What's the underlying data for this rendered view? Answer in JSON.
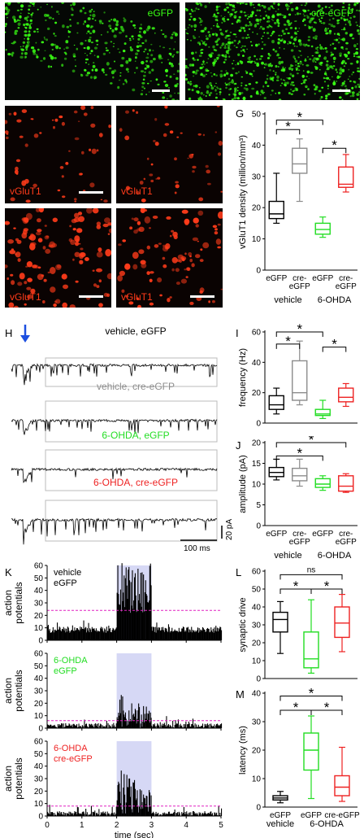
{
  "micrographs": {
    "top_left_label": "eGFP",
    "top_right_label": "cre-eGFP",
    "vglut_labels": [
      "vGluT1",
      "vGluT1",
      "vGluT1",
      "vGluT1"
    ],
    "green_color": "#39ff14",
    "red_color": "#ff3b1a"
  },
  "panel_letters": [
    "G",
    "H",
    "I",
    "J",
    "K",
    "L",
    "M"
  ],
  "colors": {
    "vehicle_egfp": "#000000",
    "vehicle_cre": "#8c8c8c",
    "ohda_egfp": "#22dd22",
    "ohda_cre": "#ee2222"
  },
  "traces": {
    "labels": [
      "vehicle, eGFP",
      "vehicle, cre-eGFP",
      "6-OHDA, eGFP",
      "6-OHDA, cre-eGFP"
    ],
    "scale_y": "20 pA",
    "scale_x": "100 ms"
  },
  "chart_data": [
    {
      "id": "G",
      "type": "box",
      "ylabel": "vGluT1 density (million/mm³)",
      "ylim": [
        0,
        50
      ],
      "yticks": [
        0,
        10,
        20,
        30,
        40,
        50
      ],
      "categories": [
        "eGFP",
        "cre-\neGFP",
        "eGFP",
        "cre-\neGFP"
      ],
      "groups": [
        "vehicle",
        "6-OHDA"
      ],
      "boxes": [
        {
          "min": 15,
          "q1": 16.5,
          "median": 18,
          "q3": 22,
          "max": 31
        },
        {
          "min": 22,
          "q1": 31,
          "median": 34,
          "q3": 39,
          "max": 42
        },
        {
          "min": 10.5,
          "q1": 11.5,
          "median": 13,
          "q3": 15,
          "max": 17
        },
        {
          "min": 25,
          "q1": 26.5,
          "median": 27.5,
          "q3": 33,
          "max": 37
        }
      ],
      "significance": [
        "*",
        "*",
        "*"
      ]
    },
    {
      "id": "I",
      "type": "box",
      "ylabel": "frequency (Hz)",
      "ylim": [
        0,
        60
      ],
      "yticks": [
        0,
        20,
        40,
        60
      ],
      "boxes": [
        {
          "min": 6,
          "q1": 9,
          "median": 12,
          "q3": 18,
          "max": 23
        },
        {
          "min": 12,
          "q1": 15,
          "median": 20,
          "q3": 41,
          "max": 54
        },
        {
          "min": 3,
          "q1": 5,
          "median": 6,
          "q3": 9,
          "max": 15
        },
        {
          "min": 11,
          "q1": 14,
          "median": 17,
          "q3": 23,
          "max": 26
        }
      ],
      "significance": [
        "*",
        "*",
        "*"
      ]
    },
    {
      "id": "J",
      "type": "box",
      "ylabel": "amplitude (pA)",
      "ylim": [
        0,
        20
      ],
      "yticks": [
        0,
        5,
        10,
        15,
        20
      ],
      "categories": [
        "eGFP",
        "cre-\neGFP",
        "eGFP",
        "cre-\neGFP"
      ],
      "groups": [
        "vehicle",
        "6-OHDA"
      ],
      "boxes": [
        {
          "min": 11,
          "q1": 11.8,
          "median": 12.8,
          "q3": 14,
          "max": 16
        },
        {
          "min": 9.5,
          "q1": 10.8,
          "median": 12,
          "q3": 13.8,
          "max": 16
        },
        {
          "min": 8.5,
          "q1": 9.2,
          "median": 10,
          "q3": 11.3,
          "max": 12
        },
        {
          "min": 8,
          "q1": 8.3,
          "median": 9.5,
          "q3": 12,
          "max": 12.5
        }
      ],
      "significance": [
        "*",
        "*"
      ]
    },
    {
      "id": "K",
      "type": "histogram",
      "panels": [
        {
          "label1": "vehicle",
          "label2": "eGFP",
          "label_color": "#000000",
          "threshold": 24
        },
        {
          "label1": "6-OHDA",
          "label2": "eGFP",
          "label_color": "#22dd22",
          "threshold": 6
        },
        {
          "label1": "6-OHDA",
          "label2": "cre-eGFP",
          "label_color": "#ee2222",
          "threshold": 8
        }
      ],
      "ylabel": "action\npotentials",
      "ylim": [
        0,
        60
      ],
      "yticks": [
        0,
        10,
        20,
        30,
        40,
        50,
        60
      ],
      "xlim": [
        0,
        5
      ],
      "xticks": [
        0,
        1,
        2,
        3,
        4,
        5
      ],
      "xlabel": "time (sec)",
      "stim_window": [
        2,
        3
      ]
    },
    {
      "id": "L",
      "type": "box",
      "ylabel": "synaptic drive",
      "ylim": [
        0,
        60
      ],
      "yticks": [
        0,
        10,
        20,
        30,
        40,
        50,
        60
      ],
      "boxes": [
        {
          "min": 14,
          "q1": 26,
          "median": 33,
          "q3": 37,
          "max": 43
        },
        {
          "min": 3,
          "q1": 6,
          "median": 11,
          "q3": 26,
          "max": 44
        },
        {
          "min": 15,
          "q1": 23,
          "median": 31,
          "q3": 40,
          "max": 47
        }
      ],
      "significance": [
        "*",
        "*",
        "ns"
      ]
    },
    {
      "id": "M",
      "type": "box",
      "ylabel": "latency (ms)",
      "ylim": [
        0,
        40
      ],
      "yticks": [
        0,
        10,
        20,
        30,
        40
      ],
      "categories": [
        "eGFP",
        "eGFP",
        "cre-eGFP"
      ],
      "groups": [
        "vehicle",
        "6-OHDA"
      ],
      "boxes": [
        {
          "min": 1.5,
          "q1": 2.5,
          "median": 3.2,
          "q3": 4,
          "max": 5.5
        },
        {
          "min": 3,
          "q1": 13,
          "median": 20,
          "q3": 26,
          "max": 32
        },
        {
          "min": 2,
          "q1": 4,
          "median": 7,
          "q3": 11,
          "max": 21
        }
      ],
      "significance": [
        "*",
        "*",
        "*"
      ]
    }
  ]
}
